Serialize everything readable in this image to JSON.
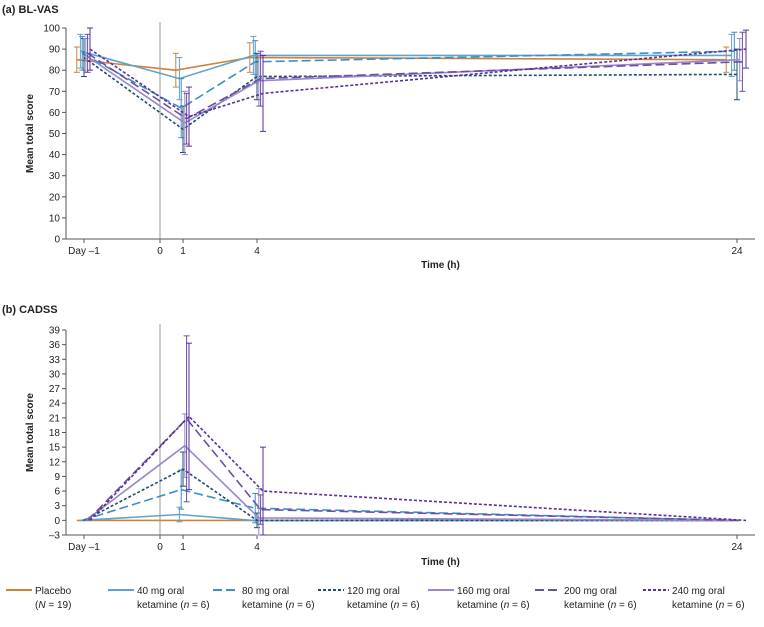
{
  "chart_data": [
    {
      "type": "line",
      "title": "(a) BL-VAS",
      "xlabel": "Time (h)",
      "ylabel": "Mean total score",
      "ylim": [
        0,
        100
      ],
      "yticks": [
        0,
        10,
        20,
        30,
        40,
        50,
        60,
        70,
        80,
        90,
        100
      ],
      "xticks": [
        {
          "value": -1,
          "label": "Day –1"
        },
        {
          "value": 0,
          "label": "0"
        },
        {
          "value": 1,
          "label": "1"
        },
        {
          "value": 4,
          "label": "4"
        },
        {
          "value": 24,
          "label": "24"
        }
      ],
      "series": [
        {
          "name": "Placebo",
          "x": [
            -1,
            1,
            4,
            24
          ],
          "values": [
            85,
            80,
            86,
            85
          ],
          "err": [
            6,
            8,
            7,
            6
          ]
        },
        {
          "name": "40 mg",
          "x": [
            -1,
            1,
            4,
            24
          ],
          "values": [
            89,
            76,
            87,
            87
          ],
          "err": [
            8,
            10,
            9,
            10
          ]
        },
        {
          "name": "80 mg",
          "x": [
            -1,
            1,
            4,
            24
          ],
          "values": [
            88,
            62,
            84,
            89
          ],
          "err": [
            8,
            14,
            10,
            9
          ]
        },
        {
          "name": "120 mg",
          "x": [
            -1,
            1,
            4,
            24
          ],
          "values": [
            86,
            52,
            77,
            78
          ],
          "err": [
            9,
            11,
            11,
            12
          ]
        },
        {
          "name": "160 mg",
          "x": [
            -1,
            1,
            4,
            24
          ],
          "values": [
            87,
            55,
            75,
            85
          ],
          "err": [
            8,
            15,
            12,
            10
          ]
        },
        {
          "name": "200 mg",
          "x": [
            -1,
            1,
            4,
            24
          ],
          "values": [
            88,
            57,
            76,
            84
          ],
          "err": [
            9,
            12,
            13,
            14
          ]
        },
        {
          "name": "240 mg",
          "x": [
            -1,
            1,
            4,
            24
          ],
          "values": [
            90,
            58,
            69,
            90
          ],
          "err": [
            10,
            14,
            18,
            9
          ]
        }
      ]
    },
    {
      "type": "line",
      "title": "(b) CADSS",
      "xlabel": "Time (h)",
      "ylabel": "Mean total score",
      "ylim": [
        -3,
        39
      ],
      "yticks": [
        -3,
        0,
        3,
        6,
        9,
        12,
        15,
        18,
        21,
        24,
        27,
        30,
        33,
        36,
        39
      ],
      "xticks": [
        {
          "value": -1,
          "label": "Day –1"
        },
        {
          "value": 0,
          "label": "0"
        },
        {
          "value": 1,
          "label": "1"
        },
        {
          "value": 4,
          "label": "4"
        },
        {
          "value": 24,
          "label": "24"
        }
      ],
      "series": [
        {
          "name": "Placebo",
          "x": [
            -1,
            1,
            4,
            24
          ],
          "values": [
            0,
            0,
            0,
            0
          ],
          "err": [
            0,
            0,
            0,
            0
          ]
        },
        {
          "name": "40 mg",
          "x": [
            -1,
            1,
            4,
            24
          ],
          "values": [
            0,
            1.2,
            0,
            0
          ],
          "err": [
            0,
            1.5,
            0,
            0
          ]
        },
        {
          "name": "80 mg",
          "x": [
            -1,
            1,
            4,
            24
          ],
          "values": [
            0,
            6.3,
            2.5,
            0
          ],
          "err": [
            0,
            4,
            3,
            0
          ]
        },
        {
          "name": "120 mg",
          "x": [
            -1,
            1,
            4,
            24
          ],
          "values": [
            0,
            10.5,
            0,
            0
          ],
          "err": [
            0,
            3.5,
            1.5,
            0
          ]
        },
        {
          "name": "160 mg",
          "x": [
            -1,
            1,
            4,
            24
          ],
          "values": [
            0,
            15.3,
            0.5,
            0
          ],
          "err": [
            0,
            6.5,
            6,
            0
          ]
        },
        {
          "name": "200 mg",
          "x": [
            -1,
            1,
            4,
            24
          ],
          "values": [
            0,
            20.8,
            2.2,
            0
          ],
          "err": [
            0,
            17,
            3,
            0
          ]
        },
        {
          "name": "240 mg",
          "x": [
            -1,
            1,
            4,
            24
          ],
          "values": [
            0,
            21.3,
            6.0,
            0
          ],
          "err": [
            0,
            15,
            9,
            0
          ]
        }
      ]
    }
  ],
  "legend": [
    {
      "line1": "Placebo",
      "line2_pre": "(",
      "line2_it": "N",
      "line2_post": " = 19)",
      "color": "#d0813a",
      "dash": "solid"
    },
    {
      "line1": "40 mg oral",
      "line2_pre": "ketamine (",
      "line2_it": "n",
      "line2_post": " = 6)",
      "color": "#5fa3cb",
      "dash": "solid"
    },
    {
      "line1": "80 mg oral",
      "line2_pre": "ketamine (",
      "line2_it": "n",
      "line2_post": " = 6)",
      "color": "#3a8fc9",
      "dash": "long"
    },
    {
      "line1": "120 mg oral",
      "line2_pre": "ketamine (",
      "line2_it": "n",
      "line2_post": " = 6)",
      "color": "#1f4e6e",
      "dash": "short"
    },
    {
      "line1": "160 mg oral",
      "line2_pre": "ketamine (",
      "line2_it": "n",
      "line2_post": " = 6)",
      "color": "#9b86c9",
      "dash": "solid"
    },
    {
      "line1": "200 mg oral",
      "line2_pre": "ketamine (",
      "line2_it": "n",
      "line2_post": " = 6)",
      "color": "#6a4fa3",
      "dash": "long"
    },
    {
      "line1": "240 mg oral",
      "line2_pre": "ketamine (",
      "line2_it": "n",
      "line2_post": " = 6)",
      "color": "#5a2f9a",
      "dash": "short"
    }
  ]
}
